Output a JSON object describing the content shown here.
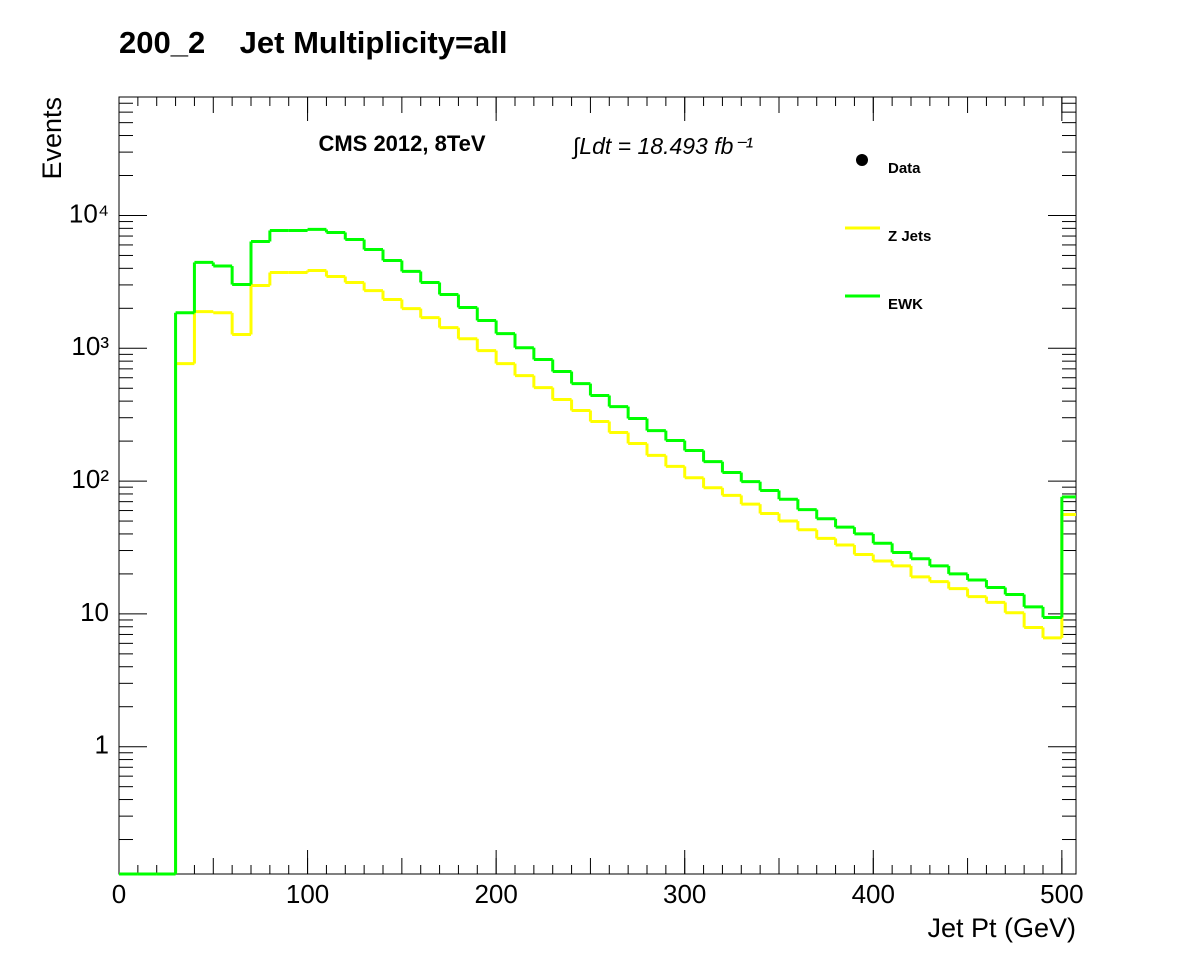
{
  "chart_data": {
    "type": "histogram",
    "title": "200_2    Jet Multiplicity=all",
    "x_label": "Jet Pt (GeV)",
    "y_label": "Events",
    "annotations": [
      "CMS 2012, 8TeV",
      "∫Ldt = 18.493 fb⁻¹"
    ],
    "bins": [
      0,
      10,
      20,
      30,
      40,
      50,
      60,
      70,
      80,
      90,
      100,
      110,
      120,
      130,
      140,
      150,
      160,
      170,
      180,
      190,
      200,
      210,
      220,
      230,
      240,
      250,
      260,
      270,
      280,
      290,
      300,
      310,
      320,
      330,
      340,
      350,
      360,
      370,
      380,
      390,
      400,
      410,
      420,
      430,
      440,
      450,
      460,
      470,
      480,
      490,
      500,
      507.5
    ],
    "series": [
      {
        "name": "Data",
        "color": "#000000",
        "marker": "circle",
        "values": [
          null,
          null,
          null,
          null,
          null,
          null,
          null,
          null,
          null,
          null,
          null,
          null,
          null,
          null,
          null,
          null,
          null,
          null,
          null,
          null,
          null,
          null,
          null,
          null,
          null,
          null,
          null,
          null,
          null,
          null,
          null,
          null,
          null,
          null,
          null,
          null,
          null,
          null,
          null,
          null,
          null,
          null,
          null,
          null,
          null,
          null,
          null,
          null,
          null,
          null,
          null
        ]
      },
      {
        "name": "Z Jets",
        "color": "#ffff00",
        "values": [
          0,
          0,
          0,
          767,
          1890,
          1850,
          1270,
          2970,
          3720,
          3720,
          3850,
          3470,
          3130,
          2720,
          2330,
          1990,
          1700,
          1430,
          1180,
          961,
          767,
          623,
          506,
          411,
          340,
          281,
          232,
          192,
          156,
          129,
          106,
          89,
          78,
          67,
          57,
          50,
          43,
          37,
          33,
          28,
          25,
          23,
          19,
          17.5,
          15.5,
          13.5,
          12.2,
          10.2,
          7.9,
          6.6,
          56
        ]
      },
      {
        "name": "EWK",
        "color": "#00ff00",
        "values": [
          0,
          0,
          0,
          1850,
          4430,
          4160,
          3020,
          6370,
          7710,
          7710,
          7850,
          7450,
          6590,
          5540,
          4580,
          3790,
          3130,
          2540,
          2030,
          1620,
          1290,
          1010,
          823,
          668,
          542,
          441,
          364,
          296,
          240,
          202,
          170,
          140,
          116,
          99,
          85,
          73,
          61,
          52,
          45,
          40,
          34,
          29,
          26,
          23,
          20,
          18,
          15.8,
          14,
          11.3,
          9.4,
          76
        ]
      }
    ],
    "xlim": [
      0,
      507.5
    ],
    "xticks": [
      0,
      100,
      200,
      300,
      400,
      500
    ],
    "ylim": [
      0.11,
      78000
    ],
    "log_y": true,
    "yticks": [
      1,
      10,
      {
        "value": 100,
        "label": "10²"
      },
      {
        "value": 1000,
        "label": "10³"
      },
      {
        "value": 10000,
        "label": "10⁴"
      }
    ],
    "grid": false
  }
}
